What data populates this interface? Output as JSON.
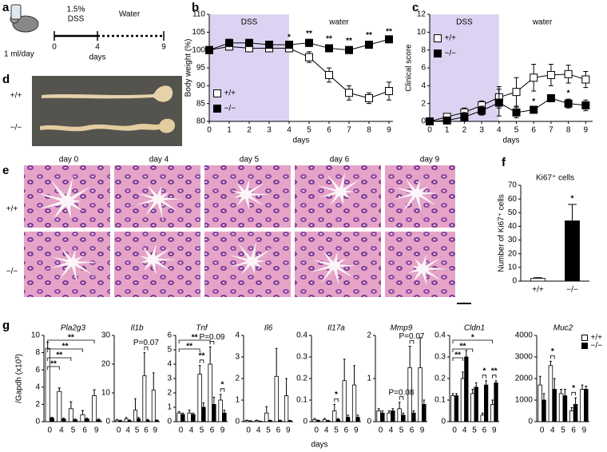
{
  "panel_labels": [
    "a",
    "b",
    "c",
    "d",
    "e",
    "f",
    "g"
  ],
  "schema": {
    "dss_label": [
      "1.5%",
      "DSS"
    ],
    "water_label": "Water",
    "dose": "1 ml/day",
    "ticks": [
      "0",
      "4",
      "9"
    ],
    "axis_label": "days"
  },
  "colon_photo": {
    "row_labels": [
      "+/+",
      "−/−"
    ]
  },
  "histology": {
    "columns": [
      "day 0",
      "day 4",
      "day 5",
      "day 6",
      "day 9"
    ],
    "row_labels": [
      "+/+",
      "−/−"
    ]
  },
  "panel_g": {
    "y_label": "/Gapdh (x10³)",
    "x_label": "days"
  },
  "chart_data": [
    {
      "type": "line",
      "y_label": "Body weight (%)",
      "x_label": "days",
      "x": [
        0,
        1,
        2,
        3,
        4,
        5,
        6,
        7,
        8,
        9
      ],
      "xlim": [
        0,
        9.2
      ],
      "xticks": [
        0,
        1,
        2,
        3,
        4,
        5,
        6,
        7,
        8,
        9
      ],
      "ylim": [
        80,
        110
      ],
      "yticks": [
        80,
        85,
        90,
        95,
        100,
        105,
        110
      ],
      "regions": [
        {
          "label": "DSS",
          "from": 0,
          "to": 4,
          "color": "#dcd3f2"
        },
        {
          "label": "water",
          "from": 4,
          "to": 9
        }
      ],
      "series": [
        {
          "name": "+/+",
          "color": "#ffffff",
          "values": [
            100,
            101,
            100.5,
            100.5,
            100.5,
            98,
            93,
            88,
            86.5,
            88.5
          ],
          "errors": [
            0.5,
            1,
            1,
            1,
            1,
            1.5,
            2,
            2,
            1.5,
            2.5
          ]
        },
        {
          "name": "−/−",
          "color": "#000000",
          "values": [
            100,
            102,
            102,
            101.5,
            101.5,
            102,
            100.5,
            100,
            101.5,
            103
          ],
          "errors": [
            0.5,
            1,
            1,
            0.5,
            0.5,
            1,
            1,
            1,
            1,
            0.5
          ]
        }
      ],
      "annotations": [
        {
          "text": "*",
          "x": 4
        },
        {
          "text": "**",
          "x": 5
        },
        {
          "text": "**",
          "x": 6
        },
        {
          "text": "**",
          "x": 7
        },
        {
          "text": "**",
          "x": 8
        },
        {
          "text": "**",
          "x": 9
        }
      ],
      "legend": "lower left"
    },
    {
      "type": "line",
      "y_label": "Clinical score",
      "x_label": "days",
      "x": [
        0,
        1,
        2,
        3,
        4,
        5,
        6,
        7,
        8,
        9
      ],
      "xlim": [
        0,
        9.4
      ],
      "xticks": [
        0,
        1,
        2,
        3,
        4,
        5,
        6,
        7,
        8,
        9
      ],
      "ylim": [
        0,
        12
      ],
      "yticks": [
        0,
        2,
        4,
        6,
        8,
        10,
        12
      ],
      "regions": [
        {
          "label": "DSS",
          "from": 0,
          "to": 4,
          "color": "#dcd3f2"
        },
        {
          "label": "water",
          "from": 4,
          "to": 9
        }
      ],
      "series": [
        {
          "name": "+/+",
          "color": "#ffffff",
          "values": [
            0,
            0.5,
            1,
            1.8,
            2.7,
            3.3,
            4.9,
            5.2,
            5.3,
            4.7
          ],
          "errors": [
            0,
            0.3,
            0.5,
            0.5,
            1.2,
            1.6,
            1.5,
            1.2,
            1,
            0.9
          ]
        },
        {
          "name": "−/−",
          "color": "#000000",
          "values": [
            0,
            0.1,
            0.5,
            1.2,
            2.1,
            1,
            1.3,
            2.6,
            2,
            1.8
          ],
          "errors": [
            0,
            0.2,
            0.5,
            0.5,
            1.5,
            0.6,
            0.3,
            0.4,
            0.5,
            0.6
          ]
        }
      ],
      "annotations": [
        {
          "text": "*",
          "x": 6,
          "series": 1
        },
        {
          "text": "*",
          "x": 8,
          "series": 1
        }
      ],
      "legend": "upper left"
    },
    {
      "type": "bar",
      "title": "Ki67⁺ cells",
      "y_label": "Number of Ki67⁺ cells",
      "categories": [
        "+/+",
        "−/−"
      ],
      "values": [
        2,
        44
      ],
      "errors": [
        0.5,
        12
      ],
      "colors": [
        "#ffffff",
        "#000000"
      ],
      "ylim": [
        0,
        70
      ],
      "yticks": [
        0,
        10,
        20,
        30,
        40,
        50,
        60,
        70
      ],
      "annotations": [
        {
          "text": "*",
          "at": "−/−"
        }
      ]
    },
    {
      "type": "bar",
      "title": "Pla2g3",
      "categories": [
        "0",
        "4",
        "5",
        "6",
        "9"
      ],
      "ylim": [
        0,
        10
      ],
      "yticks": [
        0,
        2,
        4,
        6,
        8,
        10
      ],
      "series": [
        {
          "color": "#ffffff",
          "values": [
            8.5,
            3.5,
            1.5,
            0.8,
            3
          ],
          "errors": [
            0.7,
            0.4,
            0.8,
            0.5,
            0.7
          ]
        },
        {
          "color": "#000000",
          "values": [
            0.4,
            0.3,
            0.2,
            0.3,
            0.2
          ],
          "errors": [
            0.1,
            0.1,
            0.1,
            0.1,
            0.1
          ]
        }
      ],
      "brackets": [
        {
          "text": "**",
          "from": "0",
          "to": "4"
        },
        {
          "text": "**",
          "from": "0",
          "to": "5"
        },
        {
          "text": "**",
          "from": "0",
          "to": "6"
        },
        {
          "text": "**",
          "from": "0",
          "to": "9"
        }
      ]
    },
    {
      "type": "bar",
      "title": "Il1b",
      "categories": [
        "0",
        "4",
        "5",
        "6",
        "9"
      ],
      "ylim": [
        0,
        30
      ],
      "yticks": [
        0,
        10,
        20,
        30
      ],
      "series": [
        {
          "color": "#ffffff",
          "values": [
            0.5,
            1,
            4,
            16,
            11
          ],
          "errors": [
            0.3,
            0.5,
            4,
            8,
            6
          ]
        },
        {
          "color": "#000000",
          "values": [
            0.3,
            0.4,
            1,
            0.5,
            0.4
          ],
          "errors": [
            0.2,
            0.2,
            0.5,
            0.3,
            0.2
          ]
        }
      ],
      "annotations": [
        {
          "text": "P=0.07",
          "at": "6"
        }
      ]
    },
    {
      "type": "bar",
      "title": "Tnf",
      "categories": [
        "0",
        "4",
        "5",
        "6",
        "9"
      ],
      "ylim": [
        0,
        6
      ],
      "yticks": [
        0,
        1,
        2,
        3,
        4,
        5,
        6
      ],
      "series": [
        {
          "color": "#ffffff",
          "values": [
            0.6,
            0.6,
            3.3,
            4,
            1.5
          ],
          "errors": [
            0.1,
            0.2,
            0.6,
            1.2,
            0.4
          ]
        },
        {
          "color": "#000000",
          "values": [
            0.5,
            0.5,
            1,
            1.2,
            0.6
          ],
          "errors": [
            0.1,
            0.1,
            0.3,
            0.5,
            0.2
          ]
        }
      ],
      "brackets": [
        {
          "text": "**",
          "from": "0",
          "to": "5"
        },
        {
          "text": "**",
          "from": "0",
          "to": "6"
        }
      ],
      "annotations": [
        {
          "text": "**",
          "at": "5"
        },
        {
          "text": "P=0.09",
          "at": "6"
        },
        {
          "text": "*",
          "at": "9"
        }
      ]
    },
    {
      "type": "bar",
      "title": "Il6",
      "categories": [
        "0",
        "4",
        "5",
        "6",
        "9"
      ],
      "ylim": [
        0,
        4
      ],
      "yticks": [
        0,
        1,
        2,
        3,
        4
      ],
      "series": [
        {
          "color": "#ffffff",
          "values": [
            0.05,
            0.05,
            0.4,
            2.1,
            1.2
          ],
          "errors": [
            0.02,
            0.02,
            0.3,
            1.3,
            0.8
          ]
        },
        {
          "color": "#000000",
          "values": [
            0.03,
            0.02,
            0.05,
            0.05,
            0.04
          ],
          "errors": [
            0.01,
            0.01,
            0.02,
            0.02,
            0.02
          ]
        }
      ]
    },
    {
      "type": "bar",
      "title": "Il17a",
      "categories": [
        "0",
        "4",
        "5",
        "6",
        "9"
      ],
      "ylim": [
        0,
        0.4
      ],
      "yticks": [
        0,
        0.1,
        0.2,
        0.3,
        0.4
      ],
      "series": [
        {
          "color": "#ffffff",
          "values": [
            0.01,
            0.01,
            0.05,
            0.19,
            0.17
          ],
          "errors": [
            0.005,
            0.005,
            0.03,
            0.1,
            0.09
          ]
        },
        {
          "color": "#000000",
          "values": [
            0.005,
            0.004,
            0.01,
            0.02,
            0.02
          ],
          "errors": [
            0.002,
            0.002,
            0.005,
            0.01,
            0.01
          ]
        }
      ],
      "annotations": [
        {
          "text": "*",
          "at": "5"
        }
      ]
    },
    {
      "type": "bar",
      "title": "Mmp9",
      "categories": [
        "0",
        "4",
        "5",
        "6",
        "9"
      ],
      "ylim": [
        0,
        2
      ],
      "yticks": [
        0,
        1,
        2
      ],
      "series": [
        {
          "color": "#ffffff",
          "values": [
            0.25,
            0.2,
            0.3,
            1.25,
            1.25
          ],
          "errors": [
            0.05,
            0.05,
            0.15,
            0.5,
            0.7
          ]
        },
        {
          "color": "#000000",
          "values": [
            0.2,
            0.25,
            0.15,
            0.2,
            0.4
          ],
          "errors": [
            0.05,
            0.05,
            0.05,
            0.05,
            0.1
          ]
        }
      ],
      "annotations": [
        {
          "text": "P=0.08",
          "at": "5"
        },
        {
          "text": "P=0.07",
          "at": "6"
        }
      ]
    },
    {
      "type": "bar",
      "title": "Cldn1",
      "categories": [
        "0",
        "4",
        "5",
        "6",
        "9"
      ],
      "ylim": [
        0,
        0.4
      ],
      "yticks": [
        0,
        0.1,
        0.2,
        0.3,
        0.4
      ],
      "series": [
        {
          "color": "#ffffff",
          "values": [
            0.12,
            0.2,
            0.13,
            0.03,
            0.08
          ],
          "errors": [
            0.01,
            0.03,
            0.02,
            0.01,
            0.02
          ]
        },
        {
          "color": "#000000",
          "values": [
            0.12,
            0.3,
            0.16,
            0.17,
            0.18
          ],
          "errors": [
            0.01,
            0.03,
            0.02,
            0.02,
            0.01
          ]
        }
      ],
      "brackets": [
        {
          "text": "**",
          "from": "0",
          "to": "4"
        },
        {
          "text": "**",
          "from": "0",
          "to": "5"
        },
        {
          "text": "*",
          "from": "0",
          "to": "9"
        }
      ],
      "annotations": [
        {
          "text": "*",
          "at": "6"
        },
        {
          "text": "**",
          "at": "9"
        }
      ]
    },
    {
      "type": "bar",
      "title": "Muc2",
      "categories": [
        "0",
        "4",
        "5",
        "6",
        "9"
      ],
      "ylim": [
        0,
        4000
      ],
      "yticks": [
        0,
        1000,
        2000,
        3000,
        4000
      ],
      "series": [
        {
          "name": "+/+",
          "color": "#ffffff",
          "values": [
            1700,
            2600,
            1300,
            500,
            1500
          ],
          "errors": [
            400,
            200,
            200,
            150,
            200
          ]
        },
        {
          "name": "−/−",
          "color": "#000000",
          "values": [
            1000,
            1500,
            1200,
            800,
            1500
          ],
          "errors": [
            300,
            500,
            300,
            300,
            150
          ]
        }
      ],
      "annotations": [
        {
          "text": "*",
          "at": "4"
        },
        {
          "text": "*",
          "at": "6"
        }
      ],
      "legend": "upper right"
    }
  ]
}
